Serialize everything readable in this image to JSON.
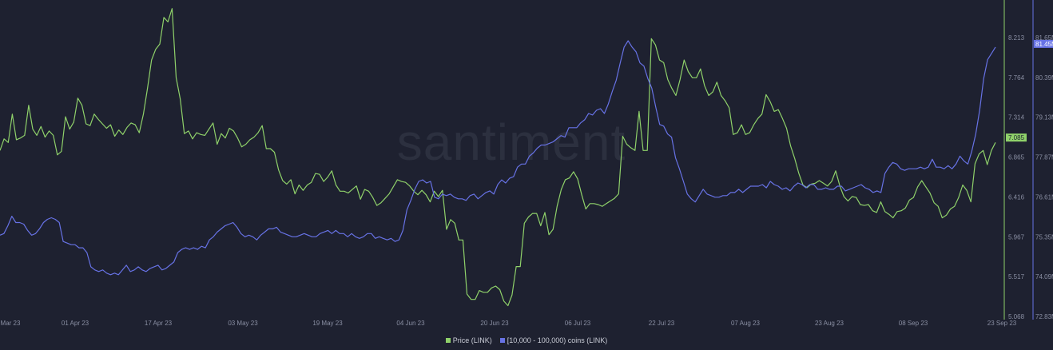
{
  "watermark": "santiment",
  "chart_data": {
    "type": "line",
    "x_ticks": [
      "Mar 23",
      "01 Apr 23",
      "17 Apr 23",
      "03 May 23",
      "19 May 23",
      "04 Jun 23",
      "20 Jun 23",
      "06 Jul 23",
      "22 Jul 23",
      "07 Aug 23",
      "23 Aug 23",
      "08 Sep 23",
      "23 Sep 23"
    ],
    "y_left": {
      "ticks": [
        "8.213",
        "7.764",
        "7.314",
        "6.865",
        "6.416",
        "5.967",
        "5.517",
        "5.068"
      ],
      "range": [
        5.068,
        8.213
      ],
      "current": "7.085",
      "color": "#8fd16a"
    },
    "y_right": {
      "ticks": [
        "81.65M",
        "80.39M",
        "79.13M",
        "77.87M",
        "76.61M",
        "75.35M",
        "74.09M",
        "72.83M"
      ],
      "range": [
        72.83,
        81.65
      ],
      "current": "81.45M",
      "color": "#6772e5"
    },
    "series": [
      {
        "name": "Price (LINK)",
        "axis": "left",
        "color": "#8fd16a",
        "values": [
          6.94,
          7.07,
          7.03,
          7.35,
          7.06,
          7.08,
          7.11,
          7.45,
          7.18,
          7.11,
          7.21,
          7.09,
          7.16,
          7.11,
          6.89,
          6.93,
          7.32,
          7.18,
          7.26,
          7.53,
          7.45,
          7.24,
          7.22,
          7.35,
          7.29,
          7.24,
          7.19,
          7.23,
          7.1,
          7.17,
          7.12,
          7.2,
          7.25,
          7.23,
          7.14,
          7.35,
          7.64,
          7.96,
          8.08,
          8.14,
          8.44,
          8.39,
          8.54,
          7.76,
          7.52,
          7.13,
          7.16,
          7.07,
          7.14,
          7.12,
          7.11,
          7.18,
          7.25,
          7.01,
          7.13,
          7.08,
          7.19,
          7.16,
          7.08,
          6.98,
          7.01,
          7.06,
          7.09,
          7.14,
          7.22,
          6.96,
          6.96,
          6.92,
          6.72,
          6.6,
          6.56,
          6.61,
          6.45,
          6.55,
          6.49,
          6.55,
          6.58,
          6.68,
          6.67,
          6.59,
          6.64,
          6.71,
          6.55,
          6.48,
          6.48,
          6.46,
          6.5,
          6.54,
          6.39,
          6.5,
          6.48,
          6.41,
          6.32,
          6.35,
          6.4,
          6.45,
          6.53,
          6.61,
          6.59,
          6.58,
          6.54,
          6.48,
          6.44,
          6.49,
          6.44,
          6.36,
          6.48,
          6.42,
          6.49,
          6.05,
          6.16,
          6.12,
          5.93,
          5.93,
          5.32,
          5.26,
          5.26,
          5.36,
          5.34,
          5.34,
          5.39,
          5.41,
          5.37,
          5.24,
          5.19,
          5.31,
          5.63,
          5.63,
          6.12,
          6.19,
          6.23,
          6.23,
          6.09,
          6.24,
          5.99,
          6.05,
          6.31,
          6.5,
          6.61,
          6.63,
          6.7,
          6.62,
          6.44,
          6.28,
          6.34,
          6.34,
          6.33,
          6.31,
          6.34,
          6.37,
          6.4,
          6.45,
          7.1,
          7.01,
          6.97,
          6.94,
          7.38,
          6.94,
          6.94,
          8.2,
          8.13,
          7.96,
          7.93,
          7.74,
          7.64,
          7.56,
          7.74,
          7.96,
          7.83,
          7.76,
          7.76,
          7.86,
          7.67,
          7.56,
          7.6,
          7.71,
          7.56,
          7.5,
          7.42,
          7.12,
          7.14,
          7.23,
          7.12,
          7.14,
          7.23,
          7.3,
          7.35,
          7.57,
          7.49,
          7.38,
          7.4,
          7.3,
          7.19,
          6.99,
          6.85,
          6.68,
          6.55,
          6.52,
          6.56,
          6.57,
          6.6,
          6.57,
          6.54,
          6.59,
          6.71,
          6.54,
          6.42,
          6.37,
          6.42,
          6.41,
          6.33,
          6.32,
          6.33,
          6.26,
          6.24,
          6.36,
          6.25,
          6.22,
          6.18,
          6.25,
          6.26,
          6.29,
          6.38,
          6.41,
          6.53,
          6.6,
          6.53,
          6.46,
          6.35,
          6.31,
          6.18,
          6.21,
          6.28,
          6.31,
          6.41,
          6.55,
          6.49,
          6.36,
          6.79,
          6.9,
          6.94,
          6.78,
          6.94,
          7.03
        ]
      },
      {
        "name": "[10,000 - 100,000) coins (LINK)",
        "axis": "right",
        "color": "#6772e5",
        "values": [
          75.4,
          75.45,
          75.7,
          76.0,
          75.8,
          75.8,
          75.75,
          75.55,
          75.4,
          75.45,
          75.6,
          75.8,
          75.9,
          75.95,
          75.9,
          75.8,
          75.2,
          75.15,
          75.1,
          75.1,
          75.0,
          75.0,
          74.85,
          74.4,
          74.3,
          74.25,
          74.3,
          74.2,
          74.15,
          74.2,
          74.15,
          74.3,
          74.45,
          74.25,
          74.3,
          74.4,
          74.3,
          74.25,
          74.35,
          74.4,
          74.45,
          74.3,
          74.35,
          74.45,
          74.55,
          74.85,
          74.95,
          75.0,
          74.95,
          75.0,
          74.95,
          75.05,
          75.0,
          75.25,
          75.35,
          75.5,
          75.6,
          75.7,
          75.75,
          75.8,
          75.65,
          75.45,
          75.35,
          75.4,
          75.35,
          75.25,
          75.4,
          75.5,
          75.6,
          75.6,
          75.65,
          75.5,
          75.45,
          75.4,
          75.35,
          75.35,
          75.4,
          75.45,
          75.4,
          75.35,
          75.35,
          75.45,
          75.5,
          75.55,
          75.45,
          75.55,
          75.45,
          75.45,
          75.35,
          75.45,
          75.35,
          75.3,
          75.35,
          75.45,
          75.45,
          75.3,
          75.35,
          75.3,
          75.25,
          75.3,
          75.2,
          75.25,
          75.55,
          76.2,
          76.5,
          76.85,
          77.1,
          77.15,
          77.05,
          77.1,
          76.6,
          76.55,
          76.7,
          76.65,
          76.7,
          76.6,
          76.55,
          76.55,
          76.5,
          76.65,
          76.7,
          76.55,
          76.65,
          76.75,
          76.8,
          76.7,
          77.0,
          77.15,
          77.05,
          77.2,
          77.25,
          77.55,
          77.65,
          77.65,
          77.9,
          78.0,
          78.15,
          78.25,
          78.25,
          78.3,
          78.35,
          78.45,
          78.55,
          78.5,
          78.8,
          78.8,
          78.8,
          78.95,
          79.05,
          79.25,
          79.2,
          79.35,
          79.4,
          79.25,
          79.55,
          79.95,
          80.3,
          80.85,
          81.35,
          81.55,
          81.35,
          81.2,
          80.85,
          80.75,
          80.35,
          80.05,
          79.45,
          78.9,
          78.85,
          78.6,
          78.5,
          77.85,
          77.5,
          77.1,
          76.7,
          76.55,
          76.45,
          76.65,
          76.85,
          76.7,
          76.65,
          76.6,
          76.6,
          76.65,
          76.65,
          76.75,
          76.75,
          76.85,
          76.75,
          76.85,
          76.95,
          76.95,
          76.95,
          77.0,
          76.9,
          77.1,
          77.0,
          76.95,
          76.85,
          76.9,
          76.8,
          76.95,
          77.05,
          77.0,
          76.9,
          77.0,
          77.0,
          76.85,
          76.85,
          76.9,
          76.85,
          76.85,
          76.95,
          76.95,
          76.8,
          76.85,
          76.9,
          76.95,
          77.0,
          76.9,
          76.85,
          76.75,
          76.8,
          76.75,
          77.35,
          77.55,
          77.7,
          77.65,
          77.5,
          77.45,
          77.5,
          77.5,
          77.5,
          77.55,
          77.5,
          77.55,
          77.8,
          77.55,
          77.55,
          77.5,
          77.6,
          77.5,
          77.65,
          77.9,
          77.75,
          77.65,
          78.05,
          78.6,
          79.35,
          80.35,
          80.95,
          81.15,
          81.35
        ]
      }
    ],
    "grid": false,
    "legend_position": "bottom-center"
  }
}
